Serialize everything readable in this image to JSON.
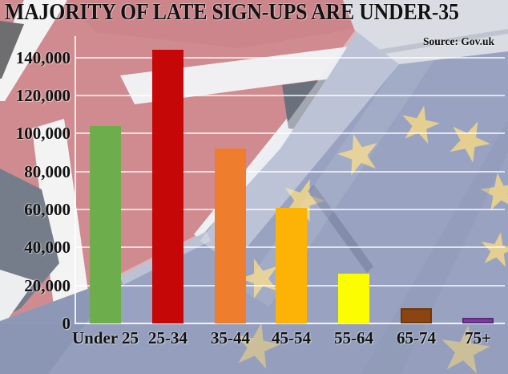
{
  "title": "MAJORITY OF LATE SIGN-UPS ARE UNDER-35",
  "source": "Source: Gov.uk",
  "chart_data": {
    "type": "bar",
    "title": "MAJORITY OF LATE SIGN-UPS ARE UNDER-35",
    "source": "Source: Gov.uk",
    "categories": [
      "Under 25",
      "25-34",
      "35-44",
      "45-54",
      "55-64",
      "65-74",
      "75+"
    ],
    "values": [
      104000,
      144000,
      92000,
      61000,
      26000,
      8000,
      3000
    ],
    "bar_colors": [
      "#6ead4b",
      "#c50707",
      "#ee7d2e",
      "#fcb306",
      "#fdfd02",
      "#8a4513",
      "#7c3c9f"
    ],
    "bar_border_colors": [
      null,
      null,
      null,
      null,
      null,
      "#703708",
      "#5a2b79"
    ],
    "xlabel": "",
    "ylabel": "",
    "ylim": [
      0,
      145000
    ],
    "yticks": [
      0,
      20000,
      40000,
      60000,
      80000,
      100000,
      120000,
      140000
    ],
    "ytick_labels": [
      "0",
      "20,000",
      "40,000",
      "60,000",
      "80,000",
      "100,000",
      "120,000",
      "140,000"
    ],
    "grid": "horizontal white gridlines",
    "legend": "none",
    "background": {
      "description": "Union Jack flag top-left blending diagonally into EU flag bottom-right",
      "uk_red": "#cf8b8f",
      "eu_blue": "#99a3c1",
      "star_gold": "#e9d28f",
      "text_color": "#121212"
    }
  }
}
